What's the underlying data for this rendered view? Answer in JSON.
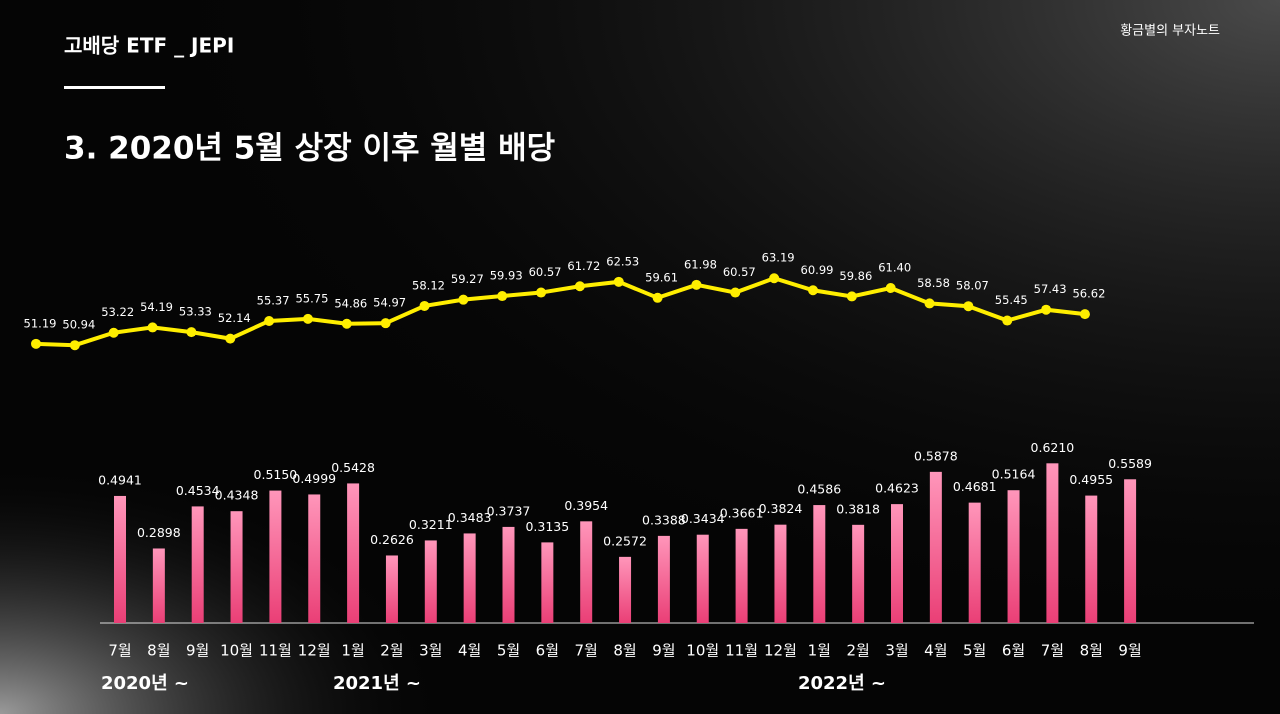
{
  "header": {
    "section": "고배당 ETF _ JEPI",
    "brand": "황금별의 부자노트",
    "title": "3. 2020년 5월 상장 이후 월별 배당"
  },
  "chart_data": [
    {
      "type": "line",
      "color": "#ffee00",
      "values": [
        51.19,
        50.94,
        53.22,
        54.19,
        53.33,
        52.14,
        55.37,
        55.75,
        54.86,
        54.97,
        58.12,
        59.27,
        59.93,
        60.57,
        61.72,
        62.53,
        59.61,
        61.98,
        60.57,
        63.19,
        60.99,
        59.86,
        61.4,
        58.58,
        58.07,
        55.45,
        57.43,
        56.62
      ],
      "value_labels": [
        "51.19",
        "50.94",
        "53.22",
        "54.19",
        "53.33",
        "52.14",
        "55.37",
        "55.75",
        "54.86",
        "54.97",
        "58.12",
        "59.27",
        "59.93",
        "60.57",
        "61.72",
        "62.53",
        "59.61",
        "61.98",
        "60.57",
        "63.19",
        "60.99",
        "59.86",
        "61.40",
        "58.58",
        "58.07",
        "55.45",
        "57.43",
        "56.62"
      ],
      "ylim": [
        40,
        70
      ]
    },
    {
      "type": "bar",
      "color": "#f2588a",
      "categories": [
        "7월",
        "8월",
        "9월",
        "10월",
        "11월",
        "12월",
        "1월",
        "2월",
        "3월",
        "4월",
        "5월",
        "6월",
        "7월",
        "8월",
        "9월",
        "10월",
        "11월",
        "12월",
        "1월",
        "2월",
        "3월",
        "4월",
        "5월",
        "6월",
        "7월",
        "8월",
        "9월"
      ],
      "values": [
        0.4941,
        0.2898,
        0.4534,
        0.4348,
        0.515,
        0.4999,
        0.5428,
        0.2626,
        0.3211,
        0.3483,
        0.3737,
        0.3135,
        0.3954,
        0.2572,
        0.3388,
        0.3434,
        0.3661,
        0.3824,
        0.4586,
        0.3818,
        0.4623,
        0.5878,
        0.4681,
        0.5164,
        0.621,
        0.4955,
        0.5589
      ],
      "value_labels": [
        "0.4941",
        "0.2898",
        "0.4534",
        "0.4348",
        "0.5150",
        "0.4999",
        "0.5428",
        "0.2626",
        "0.3211",
        "0.3483",
        "0.3737",
        "0.3135",
        "0.3954",
        "0.2572",
        "0.3388",
        "0.3434",
        "0.3661",
        "0.3824",
        "0.4586",
        "0.3818",
        "0.4623",
        "0.5878",
        "0.4681",
        "0.5164",
        "0.6210",
        "0.4955",
        "0.5589"
      ],
      "ylim": [
        0,
        0.7
      ],
      "annotations": [
        "2020년 ~",
        "2021년 ~",
        "2022년 ~"
      ]
    }
  ]
}
